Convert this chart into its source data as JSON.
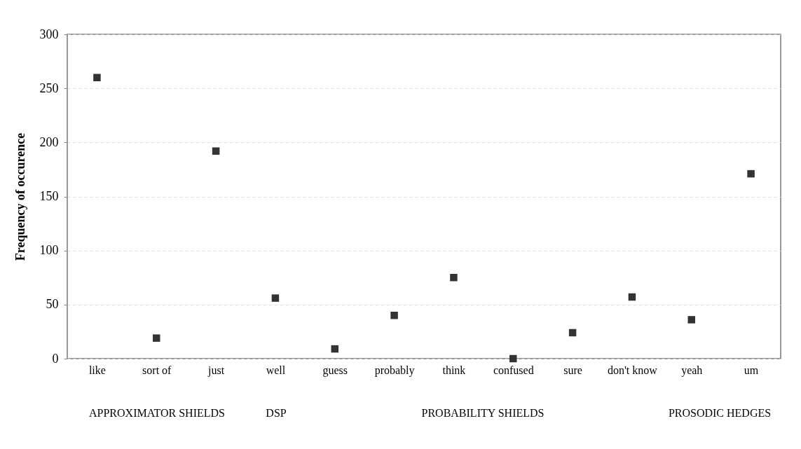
{
  "chart_data": {
    "type": "scatter",
    "ylabel": "Frequency of occurence",
    "categories": [
      "like",
      "sort of",
      "just",
      "well",
      "guess",
      "probably",
      "think",
      "confused",
      "sure",
      "don't know",
      "yeah",
      "um"
    ],
    "series": [
      {
        "color": "#333333",
        "values": [
          260,
          19,
          192,
          56,
          9,
          40,
          75,
          0,
          24,
          57,
          36,
          171
        ]
      }
    ],
    "ylim": [
      0,
      300
    ],
    "yticks": [
      0,
      50,
      100,
      150,
      200,
      250,
      300
    ],
    "grid": "y",
    "marker": "square",
    "annotations": [
      "APPROXIMATOR  SHIELDS",
      "DSP",
      "PROBABILITY SHIELDS",
      "PROSODIC HEDGES"
    ]
  }
}
